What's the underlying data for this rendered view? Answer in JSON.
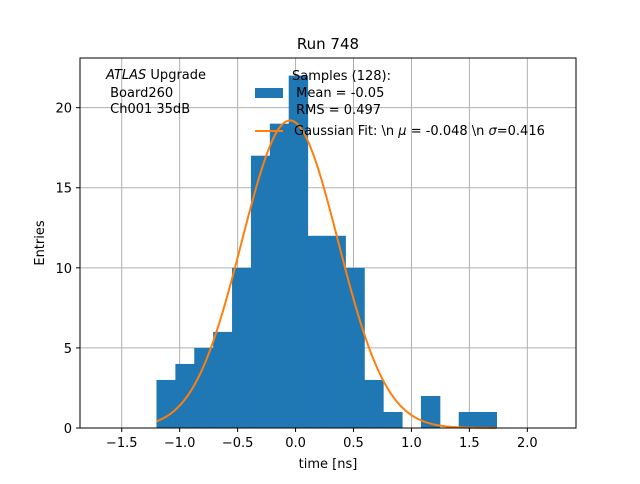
{
  "chart_data": {
    "type": "bar",
    "title": "Run 748",
    "xlabel": "time [ns]",
    "ylabel": "Entries",
    "xlim": [
      -1.86,
      2.42
    ],
    "ylim": [
      0,
      23.1
    ],
    "x_ticks": [
      -1.5,
      -1.0,
      -0.5,
      0.0,
      0.5,
      1.0,
      1.5,
      2.0
    ],
    "x_tick_labels": [
      "−1.5",
      "−1.0",
      "−0.5",
      "0.0",
      "0.5",
      "1.0",
      "1.5",
      "2.0"
    ],
    "y_ticks": [
      0,
      5,
      10,
      15,
      20
    ],
    "y_tick_labels": [
      "0",
      "5",
      "10",
      "15",
      "20"
    ],
    "grid": true,
    "bin_width": 0.163,
    "bins": [
      {
        "x": -1.2,
        "count": 3
      },
      {
        "x": -1.037,
        "count": 4
      },
      {
        "x": -0.874,
        "count": 5
      },
      {
        "x": -0.711,
        "count": 6
      },
      {
        "x": -0.548,
        "count": 10
      },
      {
        "x": -0.385,
        "count": 17
      },
      {
        "x": -0.222,
        "count": 19
      },
      {
        "x": -0.059,
        "count": 22
      },
      {
        "x": 0.104,
        "count": 12
      },
      {
        "x": 0.267,
        "count": 12
      },
      {
        "x": 0.43,
        "count": 10
      },
      {
        "x": 0.593,
        "count": 3
      },
      {
        "x": 0.756,
        "count": 1
      },
      {
        "x": 0.919,
        "count": 0
      },
      {
        "x": 1.082,
        "count": 2
      },
      {
        "x": 1.245,
        "count": 0
      },
      {
        "x": 1.408,
        "count": 1
      },
      {
        "x": 1.571,
        "count": 1
      }
    ],
    "fit": {
      "mu": -0.048,
      "sigma": 0.416,
      "amplitude": 19.2,
      "x_range": [
        -1.2,
        1.734
      ]
    },
    "colors": {
      "histogram": "#1f77b4",
      "fit": "#ff7f0e",
      "grid": "#b0b0b0"
    },
    "legend": {
      "placement": "top-right",
      "histogram_label_lines": [
        "Samples (128):",
        " Mean = -0.05",
        " RMS = 0.497"
      ],
      "fit_label_prefix": "Gaussian Fit: \\n ",
      "fit_label_mu": "μ",
      "fit_label_mid": " = -0.048 \\n ",
      "fit_label_sigma": "σ",
      "fit_label_suffix": "=0.416"
    },
    "annotation": {
      "experiment": "ATLAS",
      "label": "Upgrade",
      "lines": [
        " Board260",
        " Ch001 35dB"
      ]
    }
  }
}
